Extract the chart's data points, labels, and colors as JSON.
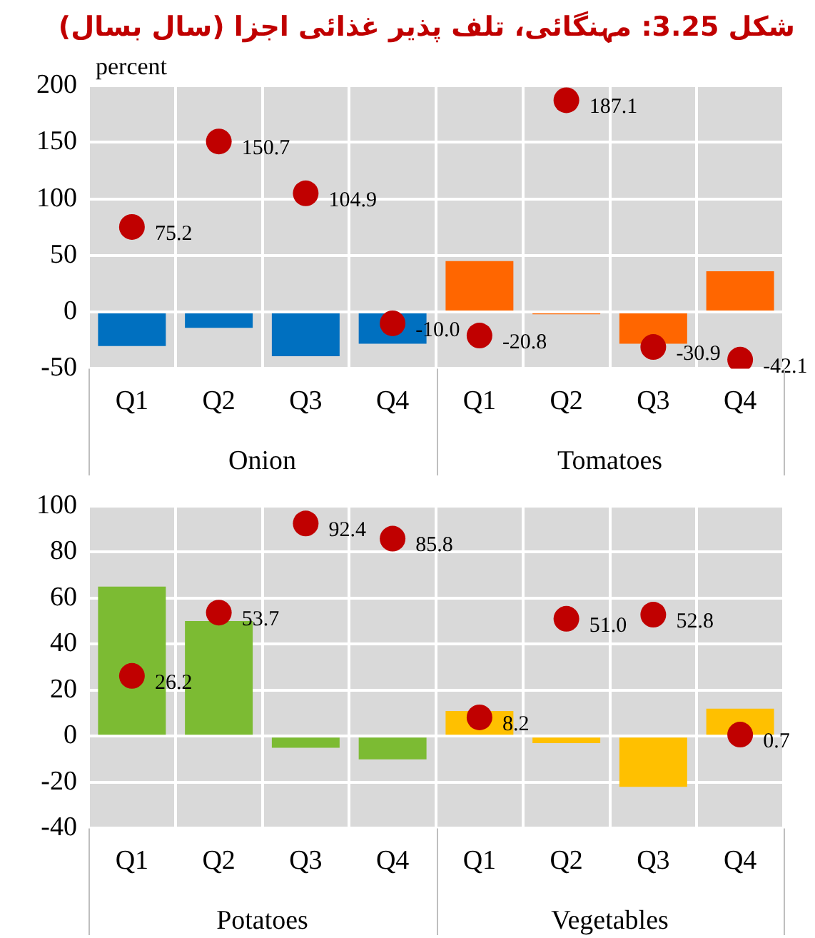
{
  "chart_data": [
    {
      "type": "bar",
      "title": "شکل 3.25: مہنگائی، تلف پذیر غذائی اجزا (سال بسال)",
      "ylabel": "percent",
      "categories": [
        "Q1",
        "Q2",
        "Q3",
        "Q4",
        "Q1",
        "Q2",
        "Q3",
        "Q4"
      ],
      "annotations": [
        "Onion",
        "Tomatoes"
      ],
      "series": [
        {
          "colors": [
            "#0070c0",
            "#0070c0",
            "#0070c0",
            "#0070c0",
            "#ff6600",
            "#ff6600",
            "#ff6600",
            "#ff6600"
          ],
          "values": [
            -30,
            -14,
            -39,
            -28,
            45,
            -2,
            -28,
            36
          ]
        },
        {
          "type": "scatter",
          "color": "#c00000",
          "values": [
            75.2,
            150.7,
            104.9,
            -10.0,
            -20.8,
            187.1,
            -30.9,
            -42.1
          ],
          "value_labels": [
            "75.2",
            "150.7",
            "104.9",
            "-10.0",
            "-20.8",
            "187.1",
            "-30.9",
            "-42.1"
          ]
        }
      ],
      "ylim": [
        -50,
        200
      ],
      "yticks": [
        -50,
        0,
        50,
        100,
        150,
        200
      ],
      "grid": true,
      "marker": "circle"
    },
    {
      "type": "bar",
      "categories": [
        "Q1",
        "Q2",
        "Q3",
        "Q4",
        "Q1",
        "Q2",
        "Q3",
        "Q4"
      ],
      "annotations": [
        "Potatoes",
        "Vegetables"
      ],
      "series": [
        {
          "colors": [
            "#7cbb33",
            "#7cbb33",
            "#7cbb33",
            "#7cbb33",
            "#ffc000",
            "#ffc000",
            "#ffc000",
            "#ffc000"
          ],
          "values": [
            65,
            50,
            -5,
            -10,
            11,
            -3,
            -22,
            12
          ]
        },
        {
          "type": "scatter",
          "color": "#c00000",
          "values": [
            26.2,
            53.7,
            92.4,
            85.8,
            8.2,
            51.0,
            52.8,
            0.7
          ],
          "value_labels": [
            "26.2",
            "53.7",
            "92.4",
            "85.8",
            "8.2",
            "51.0",
            "52.8",
            "0.7"
          ]
        }
      ],
      "ylim": [
        -40,
        100
      ],
      "yticks": [
        -40,
        -20,
        0,
        20,
        40,
        60,
        80,
        100
      ],
      "grid": true,
      "marker": "circle"
    }
  ]
}
